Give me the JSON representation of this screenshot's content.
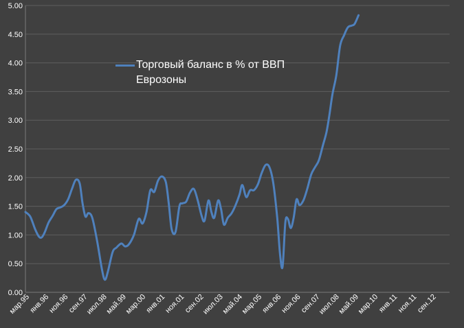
{
  "chart_data": {
    "type": "line",
    "title": "",
    "xlabel": "",
    "ylabel": "",
    "ylim": [
      0,
      5
    ],
    "y_ticks": [
      "0.00",
      "0.50",
      "1.00",
      "1.50",
      "2.00",
      "2.50",
      "3.00",
      "3.50",
      "4.00",
      "4.50",
      "5.00"
    ],
    "x_ticks": [
      "мар.95",
      "янв.96",
      "ноя.96",
      "сен.97",
      "июл.98",
      "май.99",
      "мар.00",
      "янв.01",
      "ноя.01",
      "сен.02",
      "июл.03",
      "май.04",
      "мар.05",
      "янв.06",
      "ноя.06",
      "сен.07",
      "июл.08",
      "май.09",
      "мар.10",
      "янв.11",
      "ноя.11",
      "сен.12"
    ],
    "grid": "horizontal",
    "legend_position": "upper-center",
    "series": [
      {
        "name": "Торговый баланс в % от ВВП Еврозоны",
        "color": "#4f81bd",
        "points": [
          [
            0,
            1.4
          ],
          [
            0.25,
            1.32
          ],
          [
            0.5,
            1.1
          ],
          [
            0.7,
            0.97
          ],
          [
            0.85,
            0.96
          ],
          [
            1.0,
            1.05
          ],
          [
            1.2,
            1.22
          ],
          [
            1.4,
            1.33
          ],
          [
            1.6,
            1.45
          ],
          [
            1.8,
            1.48
          ],
          [
            2.0,
            1.52
          ],
          [
            2.2,
            1.62
          ],
          [
            2.4,
            1.8
          ],
          [
            2.6,
            1.96
          ],
          [
            2.8,
            1.9
          ],
          [
            2.95,
            1.55
          ],
          [
            3.1,
            1.32
          ],
          [
            3.25,
            1.38
          ],
          [
            3.45,
            1.3
          ],
          [
            3.7,
            0.9
          ],
          [
            3.95,
            0.4
          ],
          [
            4.1,
            0.22
          ],
          [
            4.25,
            0.35
          ],
          [
            4.5,
            0.7
          ],
          [
            4.7,
            0.78
          ],
          [
            4.95,
            0.85
          ],
          [
            5.15,
            0.8
          ],
          [
            5.35,
            0.84
          ],
          [
            5.6,
            1.0
          ],
          [
            5.85,
            1.28
          ],
          [
            6.05,
            1.2
          ],
          [
            6.25,
            1.4
          ],
          [
            6.45,
            1.78
          ],
          [
            6.65,
            1.75
          ],
          [
            6.85,
            1.95
          ],
          [
            7.05,
            2.02
          ],
          [
            7.25,
            1.92
          ],
          [
            7.4,
            1.55
          ],
          [
            7.55,
            1.1
          ],
          [
            7.75,
            1.05
          ],
          [
            7.95,
            1.5
          ],
          [
            8.1,
            1.55
          ],
          [
            8.3,
            1.58
          ],
          [
            8.5,
            1.74
          ],
          [
            8.7,
            1.8
          ],
          [
            8.9,
            1.6
          ],
          [
            9.1,
            1.33
          ],
          [
            9.25,
            1.25
          ],
          [
            9.45,
            1.6
          ],
          [
            9.6,
            1.4
          ],
          [
            9.75,
            1.3
          ],
          [
            9.95,
            1.6
          ],
          [
            10.1,
            1.45
          ],
          [
            10.25,
            1.18
          ],
          [
            10.45,
            1.3
          ],
          [
            10.65,
            1.38
          ],
          [
            10.85,
            1.52
          ],
          [
            11.05,
            1.7
          ],
          [
            11.2,
            1.87
          ],
          [
            11.4,
            1.66
          ],
          [
            11.6,
            1.78
          ],
          [
            11.8,
            1.78
          ],
          [
            12.0,
            1.88
          ],
          [
            12.2,
            2.08
          ],
          [
            12.4,
            2.22
          ],
          [
            12.6,
            2.18
          ],
          [
            12.8,
            1.9
          ],
          [
            13.0,
            1.3
          ],
          [
            13.15,
            0.65
          ],
          [
            13.28,
            0.45
          ],
          [
            13.42,
            1.22
          ],
          [
            13.55,
            1.28
          ],
          [
            13.7,
            1.12
          ],
          [
            13.85,
            1.3
          ],
          [
            14.0,
            1.62
          ],
          [
            14.15,
            1.52
          ],
          [
            14.35,
            1.6
          ],
          [
            14.55,
            1.8
          ],
          [
            14.75,
            2.05
          ],
          [
            14.95,
            2.18
          ],
          [
            15.15,
            2.3
          ],
          [
            15.35,
            2.55
          ],
          [
            15.55,
            2.8
          ],
          [
            15.7,
            3.1
          ],
          [
            15.85,
            3.45
          ],
          [
            16.05,
            3.78
          ],
          [
            16.25,
            4.3
          ],
          [
            16.45,
            4.48
          ],
          [
            16.65,
            4.62
          ],
          [
            16.85,
            4.65
          ],
          [
            17.0,
            4.68
          ],
          [
            17.2,
            4.83
          ]
        ]
      }
    ]
  }
}
